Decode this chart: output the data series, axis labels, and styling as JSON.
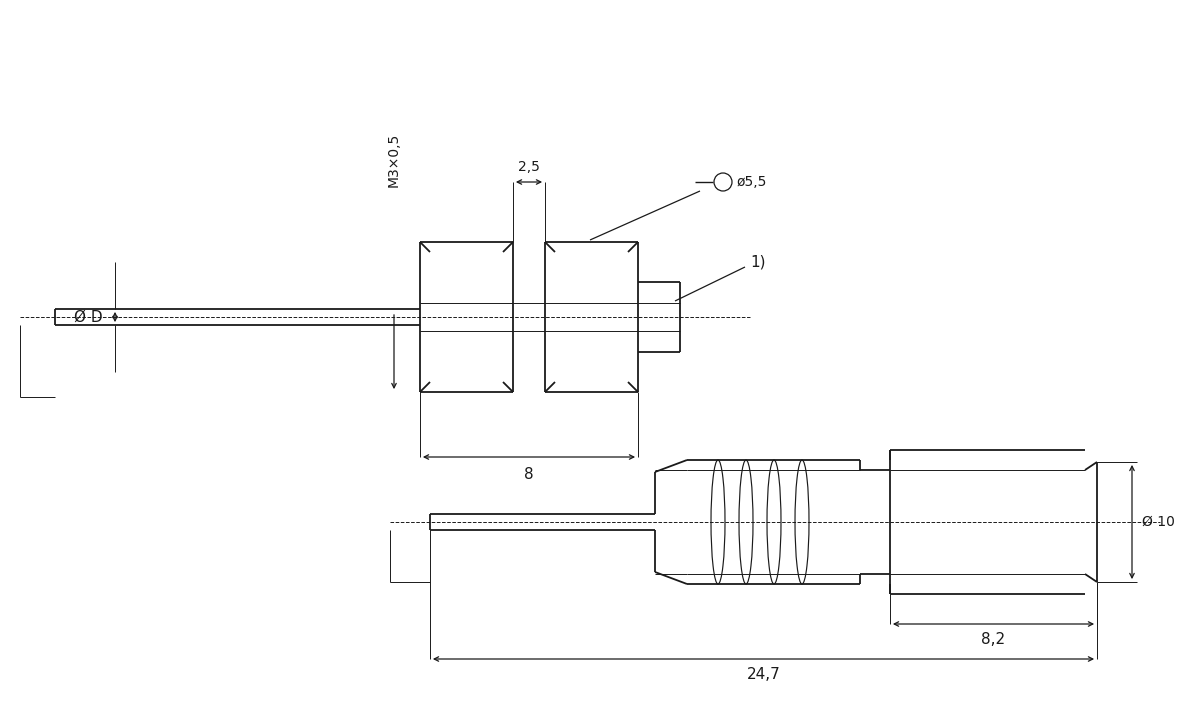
{
  "bg_color": "#ffffff",
  "line_color": "#1a1a1a",
  "lw": 1.3,
  "tlw": 0.7,
  "dlw": 0.9,
  "figsize": [
    12.0,
    7.07
  ],
  "dpi": 100,
  "annotations": {
    "phi_d": "Ø D",
    "m3x05": "M3×0,5",
    "dim_25": "2,5",
    "dim_55": "ø5,5",
    "label_1": "1)",
    "dim_8": "8",
    "phi_10": "Ø 10",
    "dim_82": "8,2",
    "dim_247": "24,7"
  }
}
